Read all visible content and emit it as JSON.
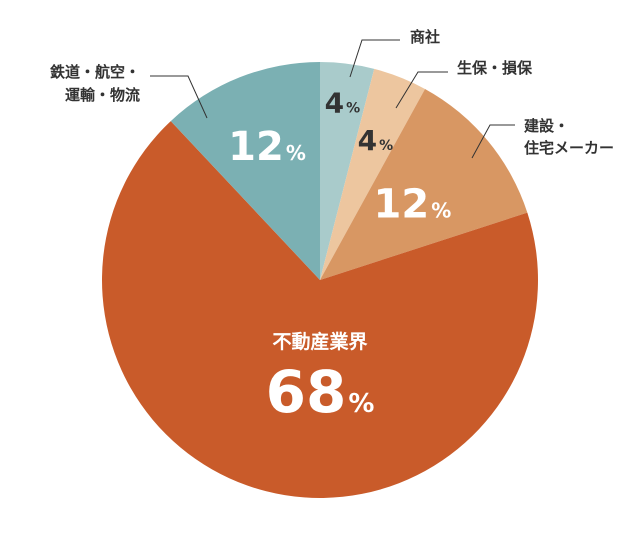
{
  "chart_data": {
    "type": "pie",
    "title": "",
    "unit_symbol": "%",
    "slices": [
      {
        "label": "商社",
        "value": 4,
        "value_text": "4",
        "color": "#a9cbcb",
        "label_color": "#333333"
      },
      {
        "label": "生保・損保",
        "value": 4,
        "value_text": "4",
        "color": "#edc69f",
        "label_color": "#333333"
      },
      {
        "label": "建設・住宅メーカー",
        "label_lines": [
          "建設・",
          "住宅メーカー"
        ],
        "value": 12,
        "value_text": "12",
        "color": "#d89763",
        "label_color": "#ffffff"
      },
      {
        "label": "不動産業界",
        "value": 68,
        "value_text": "68",
        "color": "#c95b2a",
        "label_color": "#ffffff"
      },
      {
        "label": "鉄道・航空・運輸・物流",
        "label_lines": [
          "鉄道・航空・",
          "運輸・物流"
        ],
        "value": 12,
        "value_text": "12",
        "color": "#7bb0b3",
        "label_color": "#ffffff"
      }
    ]
  }
}
